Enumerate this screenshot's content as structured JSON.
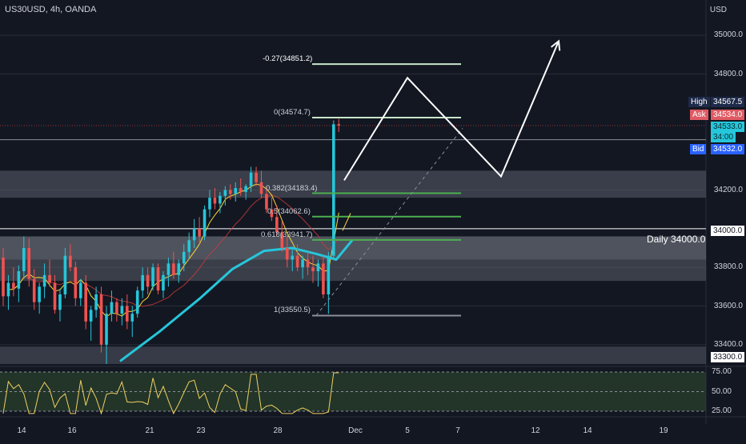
{
  "chart_title": "US30USD, 4h, OANDA",
  "currency": "USD",
  "price_axis": {
    "ticks": [
      {
        "label": "35000.0",
        "value": 35000
      },
      {
        "label": "34800.0",
        "value": 34800
      },
      {
        "label": "34200.0",
        "value": 34200
      },
      {
        "label": "33800.0",
        "value": 33800
      },
      {
        "label": "33600.0",
        "value": 33600
      },
      {
        "label": "33400.0",
        "value": 33400
      }
    ]
  },
  "price_tags": {
    "high": {
      "name": "High",
      "value": "34567.5"
    },
    "ask": {
      "name": "Ask",
      "value": "34534.0"
    },
    "last": {
      "value": "34533.0",
      "countdown": "34:00"
    },
    "bid": {
      "name": "Bid",
      "value": "34532.0"
    },
    "daily_level": "34000.0",
    "bottom_level": "33300.0"
  },
  "daily_label": "Daily 34000.0",
  "fib_levels": [
    {
      "label": "-0.27(34851.2)",
      "value": 34851.2
    },
    {
      "label": "0(34574.7)",
      "value": 34574.7
    },
    {
      "label": "0.382(34183.4)",
      "value": 34183.4
    },
    {
      "label": "0.5(34062.6)",
      "value": 34062.6
    },
    {
      "label": "0.618(33941.7)",
      "value": 33941.7
    },
    {
      "label": "1(33550.5)",
      "value": 33550.5
    }
  ],
  "x_axis_labels": [
    "14",
    "16",
    "21",
    "23",
    "28",
    "Dec",
    "5",
    "7",
    "12",
    "14",
    "19"
  ],
  "rsi": {
    "ticks": [
      "75.00",
      "50.00",
      "25.00"
    ]
  },
  "colors": {
    "background": "#131722",
    "up_candle": "#26c6da",
    "down_candle": "#ef5350",
    "ma_fast": "#f9d835",
    "ma_slow": "#d23c3c",
    "ma_long": "#26c6da",
    "fib_green": "#4caf50",
    "fib_light": "#c8e6c9",
    "high_tag": "#1e2a4a",
    "ask_tag": "#e05a63",
    "bid_tag": "#2962ff",
    "rsi_band": "#2e4a2e",
    "rsi_line": "#f0d060"
  },
  "chart_data": {
    "type": "candlestick",
    "symbol": "US30USD",
    "timeframe": "4h",
    "ylim": [
      33300,
      35100
    ],
    "ohlc": [
      [
        33850,
        33900,
        33600,
        33650
      ],
      [
        33650,
        33760,
        33580,
        33720
      ],
      [
        33720,
        33800,
        33650,
        33690
      ],
      [
        33690,
        33810,
        33620,
        33780
      ],
      [
        33780,
        33960,
        33740,
        33900
      ],
      [
        33900,
        33950,
        33700,
        33740
      ],
      [
        33740,
        33790,
        33580,
        33620
      ],
      [
        33620,
        33720,
        33560,
        33700
      ],
      [
        33700,
        33820,
        33640,
        33760
      ],
      [
        33760,
        33840,
        33700,
        33720
      ],
      [
        33720,
        33760,
        33560,
        33580
      ],
      [
        33580,
        33690,
        33520,
        33660
      ],
      [
        33660,
        33900,
        33640,
        33860
      ],
      [
        33860,
        33920,
        33780,
        33800
      ],
      [
        33800,
        33830,
        33600,
        33640
      ],
      [
        33640,
        33740,
        33600,
        33720
      ],
      [
        33720,
        33760,
        33480,
        33520
      ],
      [
        33520,
        33600,
        33420,
        33580
      ],
      [
        33580,
        33700,
        33540,
        33660
      ],
      [
        33660,
        33700,
        33360,
        33400
      ],
      [
        33400,
        33600,
        33300,
        33560
      ],
      [
        33560,
        33680,
        33520,
        33620
      ],
      [
        33620,
        33640,
        33520,
        33560
      ],
      [
        33560,
        33640,
        33500,
        33600
      ],
      [
        33600,
        33660,
        33480,
        33520
      ],
      [
        33520,
        33600,
        33440,
        33560
      ],
      [
        33560,
        33700,
        33540,
        33680
      ],
      [
        33680,
        33800,
        33640,
        33760
      ],
      [
        33760,
        33800,
        33660,
        33700
      ],
      [
        33700,
        33820,
        33680,
        33800
      ],
      [
        33800,
        33820,
        33660,
        33680
      ],
      [
        33680,
        33780,
        33640,
        33760
      ],
      [
        33760,
        33850,
        33700,
        33820
      ],
      [
        33820,
        33880,
        33740,
        33760
      ],
      [
        33760,
        33840,
        33720,
        33820
      ],
      [
        33820,
        33920,
        33780,
        33880
      ],
      [
        33880,
        33980,
        33840,
        33940
      ],
      [
        33940,
        34050,
        33900,
        34000
      ],
      [
        34000,
        34060,
        33920,
        33960
      ],
      [
        33960,
        34120,
        33940,
        34100
      ],
      [
        34100,
        34200,
        34060,
        34160
      ],
      [
        34160,
        34210,
        34100,
        34130
      ],
      [
        34130,
        34190,
        34080,
        34170
      ],
      [
        34170,
        34220,
        34120,
        34200
      ],
      [
        34200,
        34230,
        34150,
        34180
      ],
      [
        34180,
        34240,
        34140,
        34210
      ],
      [
        34210,
        34260,
        34170,
        34190
      ],
      [
        34190,
        34230,
        34150,
        34220
      ],
      [
        34220,
        34320,
        34190,
        34290
      ],
      [
        34290,
        34320,
        34220,
        34240
      ],
      [
        34240,
        34300,
        34160,
        34180
      ],
      [
        34180,
        34220,
        34080,
        34100
      ],
      [
        34100,
        34160,
        34040,
        34060
      ],
      [
        34060,
        34120,
        33960,
        33980
      ],
      [
        33980,
        34040,
        33880,
        33900
      ],
      [
        33900,
        33960,
        33800,
        33840
      ],
      [
        33840,
        33900,
        33780,
        33860
      ],
      [
        33860,
        33920,
        33780,
        33800
      ],
      [
        33800,
        33860,
        33740,
        33840
      ],
      [
        33840,
        33880,
        33760,
        33800
      ],
      [
        33800,
        33860,
        33720,
        33780
      ],
      [
        33780,
        33840,
        33700,
        33820
      ],
      [
        33820,
        33860,
        33640,
        33660
      ],
      [
        33660,
        33880,
        33560,
        33860
      ],
      [
        33860,
        34560,
        33840,
        34540
      ],
      [
        34540,
        34568,
        34500,
        34533
      ]
    ]
  }
}
